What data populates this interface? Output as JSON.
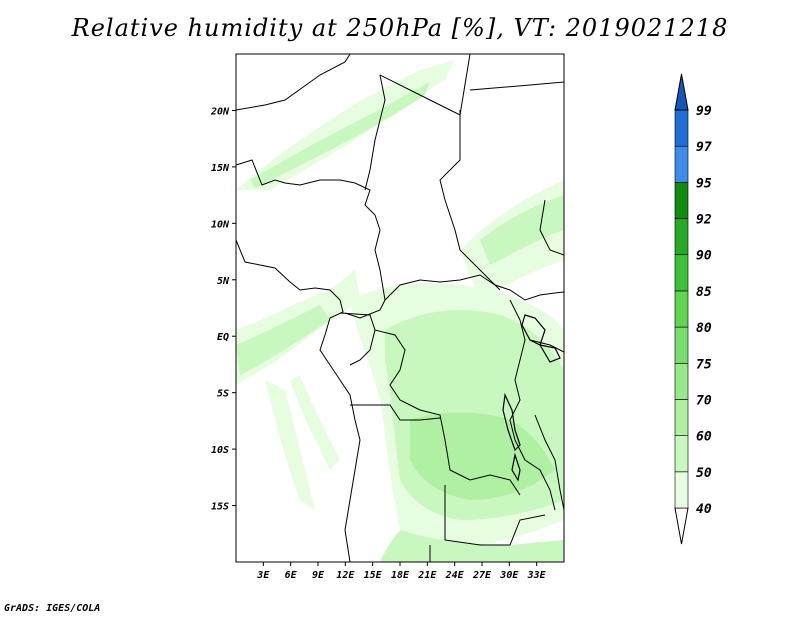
{
  "title": "Relative humidity at 250hPa [%], VT: 2019021218",
  "credit": "GrADS: IGES/COLA",
  "map": {
    "lon_range": [
      0,
      36
    ],
    "lat_range": [
      -20,
      25
    ],
    "lat_ticks": [
      {
        "value": 20,
        "label": "20N"
      },
      {
        "value": 15,
        "label": "15N"
      },
      {
        "value": 10,
        "label": "10N"
      },
      {
        "value": 5,
        "label": "5N"
      },
      {
        "value": 0,
        "label": "EQ"
      },
      {
        "value": -5,
        "label": "5S"
      },
      {
        "value": -10,
        "label": "10S"
      },
      {
        "value": -15,
        "label": "15S"
      }
    ],
    "lon_ticks": [
      {
        "value": 3,
        "label": "3E"
      },
      {
        "value": 6,
        "label": "6E"
      },
      {
        "value": 9,
        "label": "9E"
      },
      {
        "value": 12,
        "label": "12E"
      },
      {
        "value": 15,
        "label": "15E"
      },
      {
        "value": 18,
        "label": "18E"
      },
      {
        "value": 21,
        "label": "21E"
      },
      {
        "value": 24,
        "label": "24E"
      },
      {
        "value": 27,
        "label": "27E"
      },
      {
        "value": 30,
        "label": "30E"
      },
      {
        "value": 33,
        "label": "33E"
      }
    ]
  },
  "colorbar": {
    "levels": [
      "40",
      "50",
      "60",
      "70",
      "75",
      "80",
      "85",
      "90",
      "92",
      "95",
      "97",
      "99"
    ],
    "colors": [
      "#ffffff",
      "#e6fde0",
      "#c8f7bf",
      "#b0f0a3",
      "#97e88a",
      "#7ade6e",
      "#5fd552",
      "#3fc03a",
      "#27a827",
      "#118a11",
      "#3d8de8",
      "#1f6fd6",
      "#1556b8"
    ]
  }
}
